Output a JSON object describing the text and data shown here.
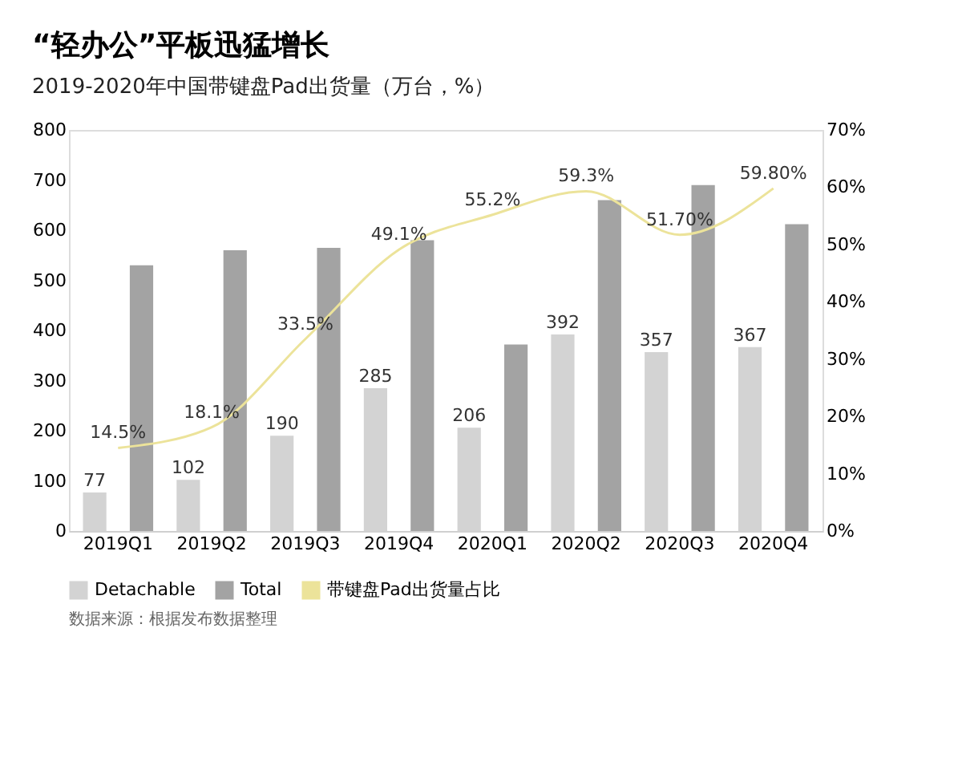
{
  "chart_data": {
    "type": "bar",
    "title": "“轻办公”平板迅猛增长",
    "subtitle": "2019-2020年中国带键盘Pad出货量（万台，%）",
    "categories": [
      "2019Q1",
      "2019Q2",
      "2019Q3",
      "2019Q4",
      "2020Q1",
      "2020Q2",
      "2020Q3",
      "2020Q4"
    ],
    "series": [
      {
        "name": "Detachable",
        "type": "bar",
        "color": "#d3d3d3",
        "values": [
          77,
          102,
          190,
          285,
          206,
          392,
          357,
          367
        ],
        "value_labels": [
          "77",
          "102",
          "190",
          "285",
          "206",
          "392",
          "357",
          "367"
        ]
      },
      {
        "name": "Total",
        "type": "bar",
        "color": "#a3a3a3",
        "values": [
          530,
          560,
          565,
          580,
          372,
          660,
          690,
          612
        ]
      },
      {
        "name": "带键盘Pad出货量占比",
        "type": "line",
        "axis": "y2",
        "color": "#ece39a",
        "values": [
          14.5,
          18.1,
          33.5,
          49.1,
          55.2,
          59.3,
          51.7,
          59.8
        ],
        "value_labels": [
          "14.5%",
          "18.1%",
          "33.5%",
          "49.1%",
          "55.2%",
          "59.3%",
          "51.70%",
          "59.80%"
        ]
      }
    ],
    "ylim": [
      0,
      800
    ],
    "yticks": [
      0,
      100,
      200,
      300,
      400,
      500,
      600,
      700,
      800
    ],
    "y2lim": [
      0,
      70
    ],
    "y2ticks": [
      {
        "value": 0,
        "label": "0%"
      },
      {
        "value": 10,
        "label": "10%"
      },
      {
        "value": 20,
        "label": "20%"
      },
      {
        "value": 30,
        "label": "30%"
      },
      {
        "value": 40,
        "label": "40%"
      },
      {
        "value": 50,
        "label": "50%"
      },
      {
        "value": 60,
        "label": "60%"
      },
      {
        "value": 70,
        "label": "70%"
      }
    ],
    "legend": "bottom",
    "grid": false,
    "marker": "none",
    "line_style": "solid",
    "annotations": [
      "数据来源：根据发布数据整理"
    ]
  }
}
